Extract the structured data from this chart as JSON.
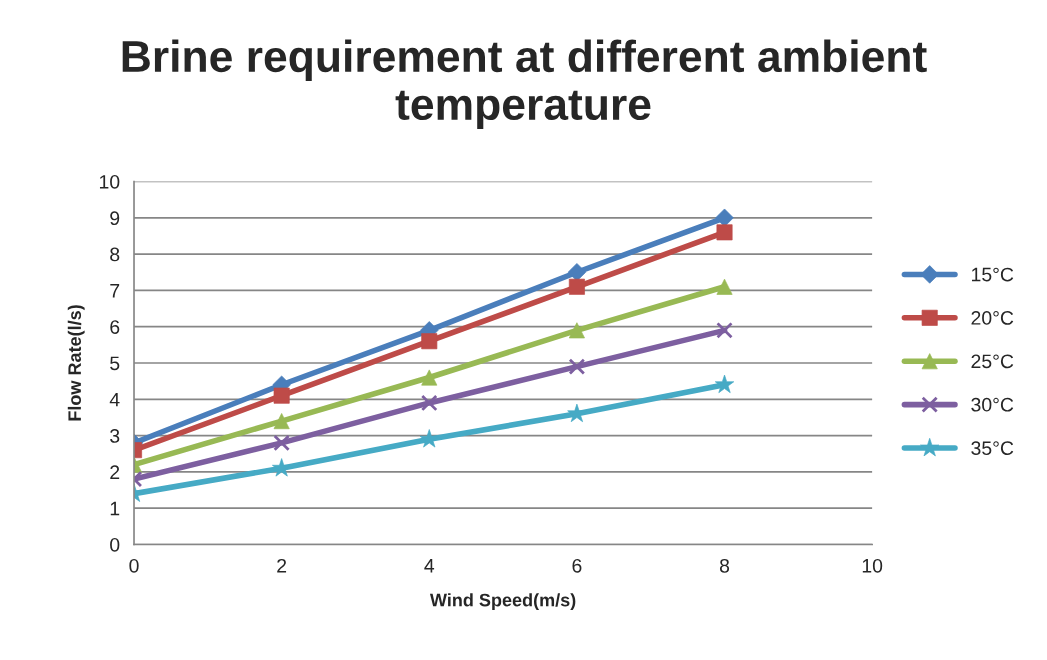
{
  "chart_data": {
    "type": "line",
    "title": "Brine requirement at different ambient temperature",
    "xlabel": "Wind Speed(m/s)",
    "ylabel": "Flow Rate(l/s)",
    "x": [
      0,
      2,
      4,
      6,
      8
    ],
    "series": [
      {
        "name": "15°C",
        "color": "#4a7ebb",
        "marker": "diamond",
        "values": [
          2.8,
          4.4,
          5.9,
          7.5,
          9.0
        ]
      },
      {
        "name": "20°C",
        "color": "#be4b48",
        "marker": "square",
        "values": [
          2.6,
          4.1,
          5.6,
          7.1,
          8.6
        ]
      },
      {
        "name": "25°C",
        "color": "#98b954",
        "marker": "triangle",
        "values": [
          2.2,
          3.4,
          4.6,
          5.9,
          7.1
        ]
      },
      {
        "name": "30°C",
        "color": "#7d5fa0",
        "marker": "cross",
        "values": [
          1.8,
          2.8,
          3.9,
          4.9,
          5.9
        ]
      },
      {
        "name": "35°C",
        "color": "#46aac5",
        "marker": "star",
        "values": [
          1.4,
          2.1,
          2.9,
          3.6,
          4.4
        ]
      }
    ],
    "xlim": [
      0,
      10
    ],
    "xticks": [
      0,
      2,
      4,
      6,
      8,
      10
    ],
    "ylim": [
      0,
      10
    ],
    "yticks": [
      0,
      1,
      2,
      3,
      4,
      5,
      6,
      7,
      8,
      9,
      10
    ],
    "grid": "y",
    "legend": "right",
    "line_style": "solid"
  }
}
